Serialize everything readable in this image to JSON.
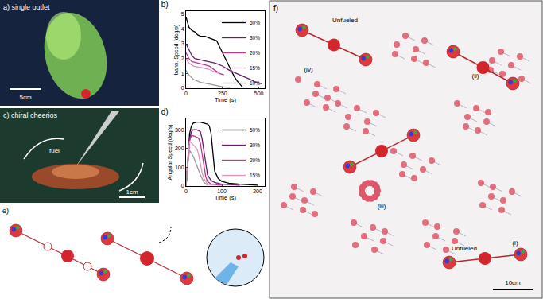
{
  "figure": {
    "a": {
      "label": "a) single outlet",
      "scale": "5cm"
    },
    "c": {
      "label": "c) chiral cheerios",
      "callout": "fuel",
      "scale": "1cm"
    },
    "e": {
      "label": "e)"
    },
    "f": {
      "label": "f)",
      "scale": "10cm",
      "notes": [
        "(iv)",
        "Unfueled",
        "(ii)",
        "(iii)",
        "(i)",
        "Unfueled"
      ]
    }
  },
  "chart_data": [
    {
      "type": "line",
      "title": "b)",
      "x_label": "Time (s)",
      "y_label": "trans. Speed (deg/s)",
      "xlim": [
        0,
        540
      ],
      "xticks": [
        0,
        250,
        500
      ],
      "ylim": [
        0,
        5.2
      ],
      "yticks": [
        0,
        1,
        2,
        3,
        4,
        5
      ],
      "legend": "upper right",
      "series": [
        {
          "name": "50%",
          "color": "#000000",
          "x": [
            0,
            10,
            20,
            40,
            60,
            80,
            100,
            130,
            160,
            190,
            210,
            230,
            250,
            270,
            290,
            310,
            330,
            350,
            370,
            385
          ],
          "values": [
            4.8,
            4.4,
            4.1,
            3.9,
            3.8,
            3.6,
            3.5,
            3.5,
            3.4,
            3.3,
            3.2,
            2.8,
            2.4,
            2.0,
            1.6,
            1.2,
            0.8,
            0.5,
            0.3,
            0.1
          ]
        },
        {
          "name": "30%",
          "color": "#6a1b6e",
          "x": [
            0,
            20,
            40,
            60,
            100,
            150,
            200,
            250,
            300,
            350,
            400,
            440,
            480,
            520
          ],
          "values": [
            3.0,
            2.6,
            2.2,
            2.0,
            1.9,
            1.8,
            1.7,
            1.5,
            1.2,
            1.0,
            0.8,
            0.6,
            0.4,
            0.3
          ]
        },
        {
          "name": "20%",
          "color": "#c0338f",
          "x": [
            0,
            20,
            40,
            80,
            120,
            160,
            200,
            230,
            260
          ],
          "values": [
            2.4,
            2.0,
            1.8,
            1.7,
            1.6,
            1.5,
            1.2,
            1.0,
            0.9
          ]
        },
        {
          "name": "15%",
          "color": "#e88fc0",
          "x": [
            0,
            20,
            50,
            100,
            150,
            200,
            230
          ],
          "values": [
            2.0,
            1.7,
            1.5,
            1.4,
            1.3,
            1.1,
            1.0
          ]
        },
        {
          "name": "10%",
          "color": "#999999",
          "x": [
            0,
            20,
            50,
            100,
            150,
            200,
            250,
            300
          ],
          "values": [
            1.2,
            0.9,
            0.6,
            0.4,
            0.3,
            0.2,
            0.1,
            0.05
          ]
        }
      ]
    },
    {
      "type": "line",
      "title": "d)",
      "x_label": "Time (s)",
      "y_label": "Angular Speed (deg/s)",
      "xlim": [
        0,
        220
      ],
      "xticks": [
        0,
        100,
        200
      ],
      "ylim": [
        0,
        360
      ],
      "yticks": [
        0,
        100,
        200,
        300
      ],
      "legend": "upper right",
      "series": [
        {
          "name": "50%",
          "color": "#000000",
          "x": [
            0,
            5,
            10,
            15,
            20,
            30,
            40,
            50,
            60,
            65,
            70,
            75,
            80,
            90,
            100,
            120,
            150,
            200
          ],
          "values": [
            0,
            150,
            280,
            320,
            335,
            340,
            340,
            335,
            330,
            320,
            280,
            180,
            80,
            40,
            25,
            15,
            10,
            5
          ]
        },
        {
          "name": "30%",
          "color": "#6a1b6e",
          "x": [
            0,
            5,
            10,
            15,
            20,
            30,
            40,
            45,
            50,
            55,
            60,
            70,
            80,
            100,
            150
          ],
          "values": [
            0,
            120,
            250,
            290,
            300,
            300,
            290,
            250,
            180,
            110,
            60,
            30,
            20,
            10,
            5
          ]
        },
        {
          "name": "20%",
          "color": "#c0338f",
          "x": [
            0,
            5,
            10,
            15,
            25,
            35,
            40,
            45,
            50,
            55,
            60,
            70,
            100
          ],
          "values": [
            0,
            120,
            240,
            270,
            265,
            255,
            230,
            170,
            100,
            50,
            25,
            10,
            5
          ]
        },
        {
          "name": "15%",
          "color": "#e88fc0",
          "x": [
            0,
            5,
            10,
            20,
            30,
            35,
            40,
            45,
            50,
            60,
            80
          ],
          "values": [
            0,
            150,
            240,
            220,
            200,
            170,
            120,
            70,
            40,
            10,
            5
          ]
        },
        {
          "name": "10%",
          "color": "#999999",
          "x": [
            0,
            5,
            10,
            20,
            30,
            40,
            50,
            60
          ],
          "values": [
            0,
            120,
            190,
            160,
            110,
            60,
            20,
            5
          ]
        }
      ]
    }
  ]
}
